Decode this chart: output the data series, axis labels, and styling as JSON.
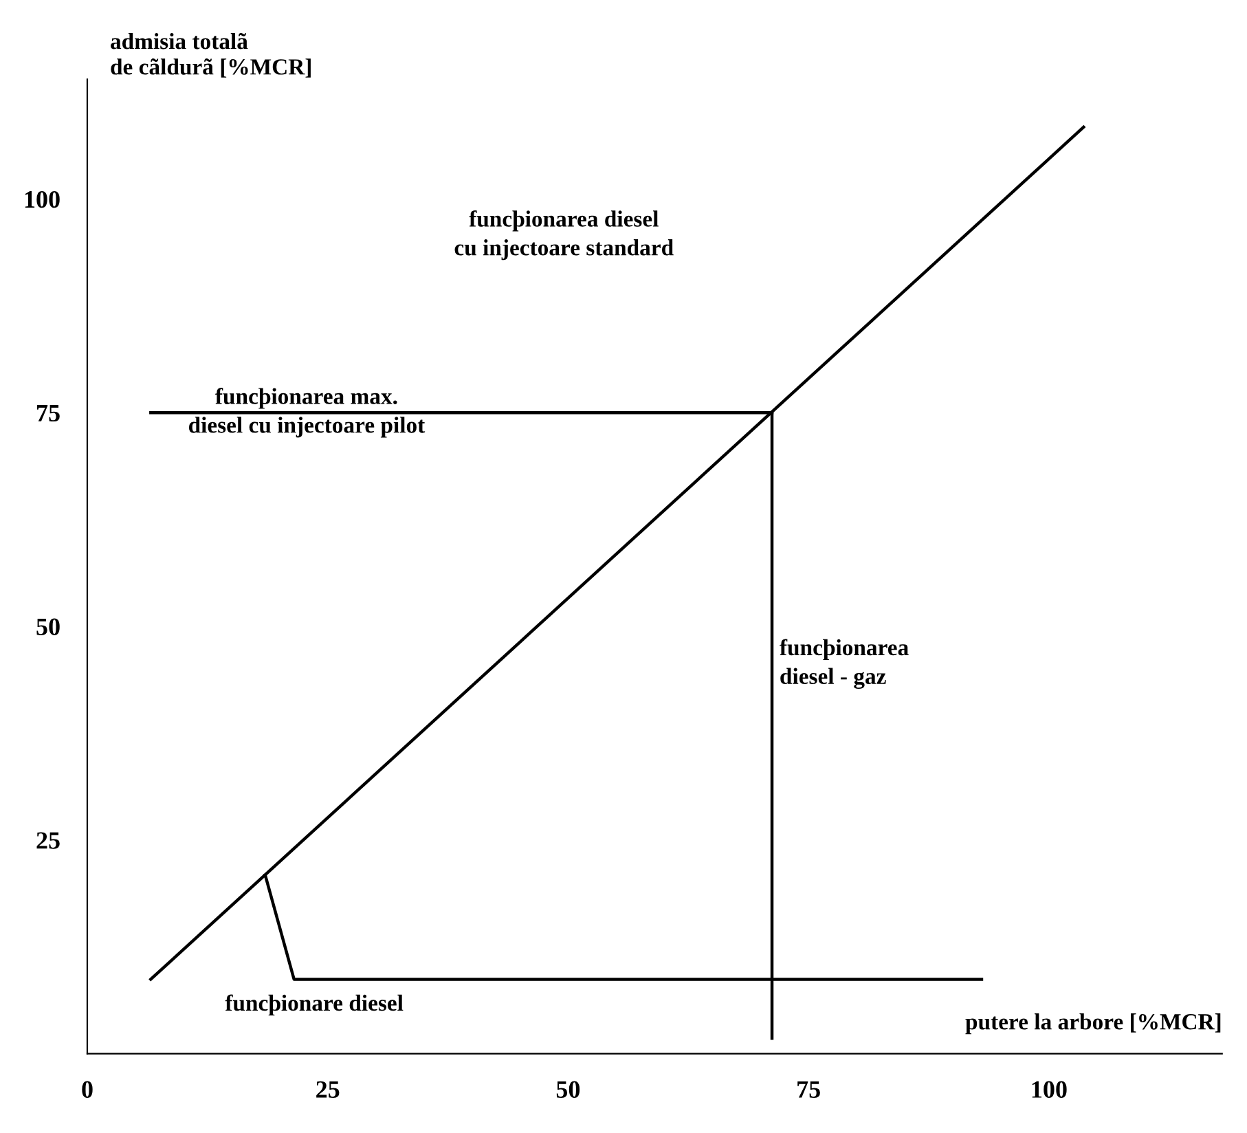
{
  "chart_data": {
    "type": "line",
    "xlabel": "putere la arbore [%MCR]",
    "ylabel": "admisia totalã\nde cãldurã [%MCR]",
    "xlim": [
      0,
      118
    ],
    "ylim": [
      0,
      114
    ],
    "xticks": [
      0,
      25,
      50,
      75,
      100
    ],
    "yticks": [
      25,
      50,
      75,
      100
    ],
    "grid": false,
    "marker": "none",
    "line_style": "solid",
    "series": [
      {
        "color": "#000000",
        "x": [
          6.6,
          103.6
        ],
        "values": [
          8.7,
          108.4
        ]
      },
      {
        "color": "#000000",
        "x": [
          6.6,
          71.2
        ],
        "values": [
          75,
          75
        ]
      },
      {
        "color": "#000000",
        "x": [
          71.2,
          71.2
        ],
        "values": [
          75,
          1.8
        ]
      },
      {
        "color": "#000000",
        "x": [
          18.5,
          21.5,
          93
        ],
        "values": [
          20.9,
          8.7,
          8.7
        ]
      }
    ],
    "annotations": [
      "funcþionarea diesel\ncu injectoare standard",
      {
        "text": "funcþionarea max.\ndiesel cu injectoare pilot",
        "x": 22.8,
        "y": 75
      },
      "funcþionarea\ndiesel - gaz",
      "funcþionare diesel"
    ]
  }
}
